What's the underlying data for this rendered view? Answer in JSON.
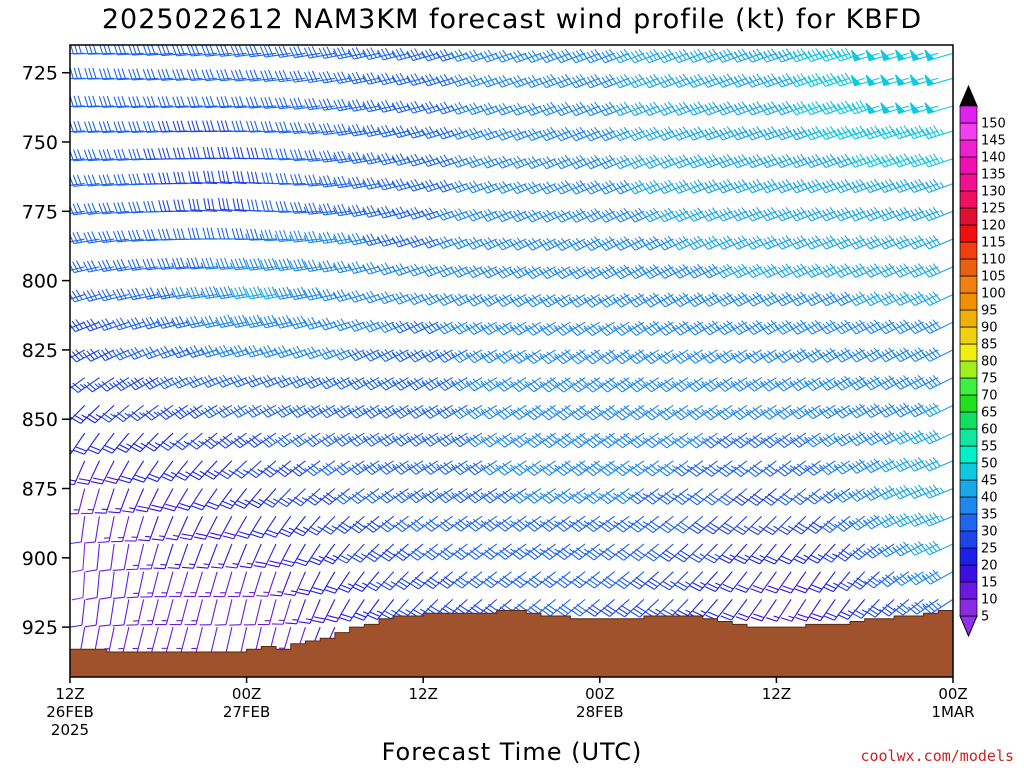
{
  "chart_data": {
    "type": "wind-barb-time-height",
    "title": "2025022612 NAM3KM forecast wind profile (kt) for KBFD",
    "xlabel": "Forecast Time (UTC)",
    "credit": "coolwx.com/models",
    "y_axis": {
      "quantity": "pressure (hPa)",
      "range": [
        715,
        943
      ],
      "inverted": true,
      "ticks": [
        725,
        750,
        775,
        800,
        825,
        850,
        875,
        900,
        925
      ]
    },
    "x_axis": {
      "range_hours": [
        0,
        60
      ],
      "ticks": [
        {
          "hour": 0,
          "lines": [
            "12Z",
            "26FEB",
            "2025"
          ]
        },
        {
          "hour": 12,
          "lines": [
            "00Z",
            "27FEB"
          ]
        },
        {
          "hour": 24,
          "lines": [
            "12Z"
          ]
        },
        {
          "hour": 36,
          "lines": [
            "00Z",
            "28FEB"
          ]
        },
        {
          "hour": 48,
          "lines": [
            "12Z"
          ]
        },
        {
          "hour": 60,
          "lines": [
            "00Z",
            "1MAR"
          ]
        }
      ]
    },
    "barb_levels_hpa": [
      718,
      727,
      737,
      746,
      756,
      765,
      775,
      785,
      795,
      805,
      815,
      825,
      835,
      845,
      855,
      865,
      875,
      885,
      895,
      905,
      915,
      925,
      935
    ],
    "terrain_surface_hpa": [
      [
        0,
        933
      ],
      [
        2.5,
        934
      ],
      [
        5,
        934
      ],
      [
        8,
        934
      ],
      [
        11,
        934
      ],
      [
        12,
        933
      ],
      [
        13,
        932
      ],
      [
        14,
        933
      ],
      [
        15,
        931
      ],
      [
        16,
        930
      ],
      [
        17,
        929
      ],
      [
        18,
        927
      ],
      [
        19,
        925
      ],
      [
        20,
        924
      ],
      [
        21,
        922
      ],
      [
        22,
        921
      ],
      [
        23,
        921
      ],
      [
        24,
        920
      ],
      [
        25,
        920
      ],
      [
        26,
        920
      ],
      [
        27,
        920
      ],
      [
        28,
        920
      ],
      [
        29,
        919
      ],
      [
        30,
        919
      ],
      [
        31,
        920
      ],
      [
        32,
        921
      ],
      [
        33,
        921
      ],
      [
        34,
        922
      ],
      [
        35,
        922
      ],
      [
        36,
        922
      ],
      [
        37,
        922
      ],
      [
        38,
        922
      ],
      [
        39,
        921
      ],
      [
        40,
        921
      ],
      [
        41,
        921
      ],
      [
        42,
        921
      ],
      [
        43,
        922
      ],
      [
        44,
        923
      ],
      [
        45,
        924
      ],
      [
        46,
        925
      ],
      [
        47,
        925
      ],
      [
        48,
        925
      ],
      [
        49,
        925
      ],
      [
        50,
        924
      ],
      [
        51,
        924
      ],
      [
        52,
        924
      ],
      [
        53,
        923
      ],
      [
        54,
        922
      ],
      [
        55,
        922
      ],
      [
        56,
        921
      ],
      [
        57,
        921
      ],
      [
        58,
        920
      ],
      [
        59,
        919
      ],
      [
        60,
        919
      ]
    ],
    "wind_field_ref_points_kt": [
      {
        "hour": 0,
        "p": 725,
        "speed": 30,
        "dir": 270
      },
      {
        "hour": 12,
        "p": 775,
        "speed": 25,
        "dir": 280
      },
      {
        "hour": 14,
        "p": 800,
        "speed": 45,
        "dir": 260
      },
      {
        "hour": 24,
        "p": 850,
        "speed": 35,
        "dir": 240
      },
      {
        "hour": 36,
        "p": 850,
        "speed": 40,
        "dir": 235
      },
      {
        "hour": 48,
        "p": 750,
        "speed": 45,
        "dir": 250
      },
      {
        "hour": 58,
        "p": 725,
        "speed": 50,
        "dir": 255
      },
      {
        "hour": 60,
        "p": 880,
        "speed": 45,
        "dir": 250
      },
      {
        "hour": 0,
        "p": 900,
        "speed": 8,
        "dir": 180
      },
      {
        "hour": 12,
        "p": 920,
        "speed": 10,
        "dir": 190
      },
      {
        "hour": 50,
        "p": 915,
        "speed": 15,
        "dir": 210
      }
    ],
    "colorbar": {
      "levels": [
        5,
        10,
        15,
        20,
        25,
        30,
        35,
        40,
        45,
        50,
        55,
        60,
        65,
        70,
        75,
        80,
        85,
        90,
        95,
        100,
        105,
        110,
        115,
        120,
        125,
        130,
        135,
        140,
        145,
        150
      ],
      "colors": [
        "#8a2be2",
        "#6a1ae0",
        "#3a10e0",
        "#1a20e8",
        "#1e44e8",
        "#1e66ee",
        "#1e88ee",
        "#1aa8e8",
        "#10c8e0",
        "#00f0c8",
        "#10e8a0",
        "#10e060",
        "#20e020",
        "#40f040",
        "#a0f020",
        "#f0f010",
        "#f0d010",
        "#f0b008",
        "#f09000",
        "#f08010",
        "#e86010",
        "#f04010",
        "#f01010",
        "#e01030",
        "#f01060",
        "#f01090",
        "#f010b0",
        "#f020d0",
        "#f040f0",
        "#e020f0"
      ],
      "over_color": "#000000",
      "under_color": "#9030f0"
    },
    "colors": {
      "terrain_fill": "#a0522d",
      "terrain_edge": "#5a2a10",
      "axes": "#000000",
      "credit_text": "#cc2222"
    }
  }
}
